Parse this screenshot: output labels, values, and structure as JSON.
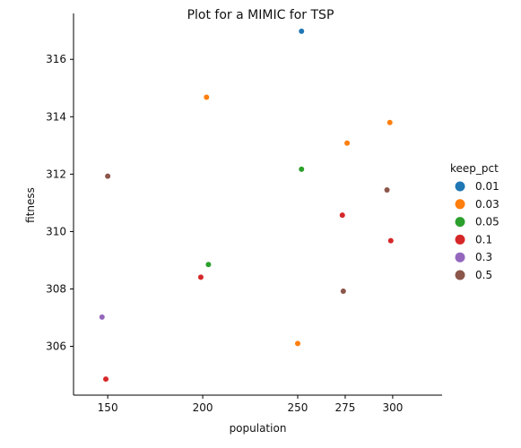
{
  "chart_data": {
    "type": "scatter",
    "title": "Plot for a MIMIC for TSP",
    "xlabel": "population",
    "ylabel": "fitness",
    "xlim": [
      132,
      326
    ],
    "ylim": [
      304.3,
      317.6
    ],
    "xticks": [
      150,
      200,
      250,
      275,
      300
    ],
    "yticks": [
      306,
      308,
      310,
      312,
      314,
      316
    ],
    "grid": false,
    "legend_position": "right",
    "legend_title": "keep_pct",
    "series": [
      {
        "name": "0.01",
        "color": "#1f77b4",
        "points": [
          {
            "x": 252,
            "y": 316.98
          }
        ]
      },
      {
        "name": "0.03",
        "color": "#ff7f0e",
        "points": [
          {
            "x": 202,
            "y": 314.68
          },
          {
            "x": 298.5,
            "y": 313.8
          },
          {
            "x": 276,
            "y": 313.08
          },
          {
            "x": 250,
            "y": 306.1
          }
        ]
      },
      {
        "name": "0.05",
        "color": "#2ca02c",
        "points": [
          {
            "x": 252,
            "y": 312.17
          },
          {
            "x": 203,
            "y": 308.85
          }
        ]
      },
      {
        "name": "0.1",
        "color": "#d62728",
        "points": [
          {
            "x": 273.5,
            "y": 310.57
          },
          {
            "x": 299,
            "y": 309.68
          },
          {
            "x": 199,
            "y": 308.41
          },
          {
            "x": 149,
            "y": 304.86
          }
        ]
      },
      {
        "name": "0.3",
        "color": "#9467bd",
        "points": [
          {
            "x": 147,
            "y": 307.02
          }
        ]
      },
      {
        "name": "0.5",
        "color": "#8c564b",
        "points": [
          {
            "x": 150,
            "y": 311.93
          },
          {
            "x": 297,
            "y": 311.45
          },
          {
            "x": 274,
            "y": 307.92
          }
        ]
      }
    ]
  }
}
